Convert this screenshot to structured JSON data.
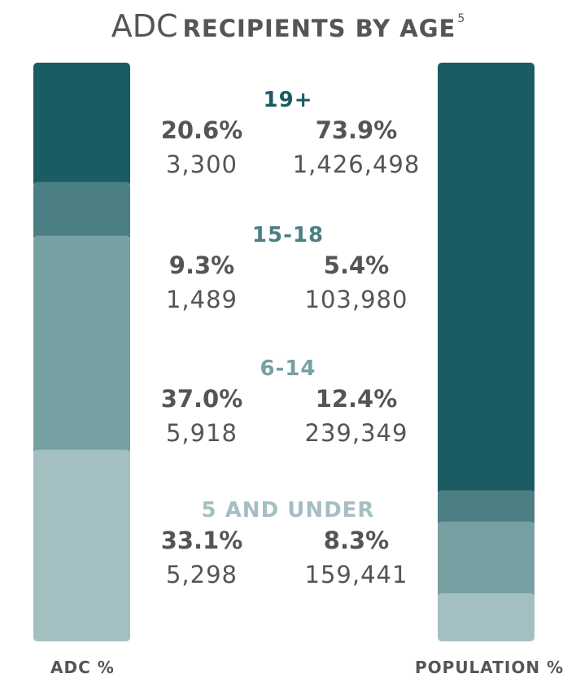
{
  "title": {
    "main": "ADC",
    "rest": "RECIPIENTS BY AGE",
    "footnote": "5"
  },
  "colors": {
    "age_19_plus": "#1b5b62",
    "age_15_18": "#4b7f84",
    "age_6_14": "#77a0a2",
    "age_5_under": "#a4bfc2",
    "text": "#555555"
  },
  "chart_data": {
    "type": "bar",
    "stacked": true,
    "categories": [
      "19+",
      "15-18",
      "6-14",
      "5 AND UNDER"
    ],
    "series": [
      {
        "name": "ADC %",
        "values": [
          20.6,
          9.3,
          37.0,
          33.1
        ],
        "value_labels": [
          "20.6%",
          "9.3%",
          "37.0%",
          "33.1%"
        ],
        "counts": [
          "3,300",
          "1,489",
          "5,918",
          "5,298"
        ]
      },
      {
        "name": "POPULATION %",
        "values": [
          73.9,
          5.4,
          12.4,
          8.3
        ],
        "value_labels": [
          "73.9%",
          "5.4%",
          "12.4%",
          "8.3%"
        ],
        "counts": [
          "1,426,498",
          "103,980",
          "239,349",
          "159,441"
        ]
      }
    ],
    "ylim": [
      0,
      100
    ],
    "legend": "none"
  }
}
